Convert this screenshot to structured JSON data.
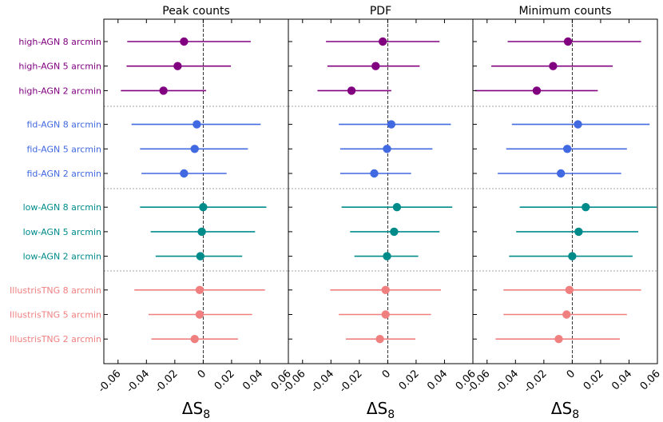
{
  "chart_data": {
    "type": "forest",
    "xlabel_main": "ΔS",
    "xlabel_sub": "8",
    "xlim": [
      -0.07,
      0.06
    ],
    "xticks": [
      -0.06,
      -0.04,
      -0.02,
      0,
      0.02,
      0.04,
      0.06
    ],
    "xtick_labels": [
      "-0.06",
      "-0.04",
      "-0.02",
      "0",
      "0.02",
      "0.04",
      "0.06"
    ],
    "rows": [
      {
        "label": "high-AGN 8 arcmin",
        "color": "#800080",
        "group": 0
      },
      {
        "label": "high-AGN 5 arcmin",
        "color": "#800080",
        "group": 0
      },
      {
        "label": "high-AGN 2 arcmin",
        "color": "#800080",
        "group": 0
      },
      {
        "label": "fid-AGN 8 arcmin",
        "color": "#4169E1",
        "group": 1
      },
      {
        "label": "fid-AGN 5 arcmin",
        "color": "#4169E1",
        "group": 1
      },
      {
        "label": "fid-AGN 2 arcmin",
        "color": "#4169E1",
        "group": 1
      },
      {
        "label": "low-AGN 8 arcmin",
        "color": "#008B8B",
        "group": 2
      },
      {
        "label": "low-AGN 5 arcmin",
        "color": "#008B8B",
        "group": 2
      },
      {
        "label": "low-AGN 2 arcmin",
        "color": "#008B8B",
        "group": 2
      },
      {
        "label": "IllustrisTNG 8 arcmin",
        "color": "#F08080",
        "group": 3
      },
      {
        "label": "IllustrisTNG 5 arcmin",
        "color": "#F08080",
        "group": 3
      },
      {
        "label": "IllustrisTNG 2 arcmin",
        "color": "#F08080",
        "group": 3
      }
    ],
    "panels": [
      {
        "title": "Peak counts",
        "series": [
          {
            "value": -0.0135,
            "low": -0.0535,
            "high": 0.0335
          },
          {
            "value": -0.018,
            "low": -0.054,
            "high": 0.0195
          },
          {
            "value": -0.028,
            "low": -0.058,
            "high": 0.002
          },
          {
            "value": -0.0045,
            "low": -0.0505,
            "high": 0.0405
          },
          {
            "value": -0.006,
            "low": -0.0445,
            "high": 0.0315
          },
          {
            "value": -0.0135,
            "low": -0.0435,
            "high": 0.0165
          },
          {
            "value": 0.0,
            "low": -0.0445,
            "high": 0.0445
          },
          {
            "value": -0.001,
            "low": -0.037,
            "high": 0.0365
          },
          {
            "value": -0.002,
            "low": -0.0335,
            "high": 0.0275
          },
          {
            "value": -0.0025,
            "low": -0.0485,
            "high": 0.0435
          },
          {
            "value": -0.0025,
            "low": -0.0385,
            "high": 0.0345
          },
          {
            "value": -0.006,
            "low": -0.0365,
            "high": 0.0245
          }
        ]
      },
      {
        "title": "PDF",
        "series": [
          {
            "value": -0.0035,
            "low": -0.0435,
            "high": 0.0365
          },
          {
            "value": -0.0085,
            "low": -0.0425,
            "high": 0.0225
          },
          {
            "value": -0.0255,
            "low": -0.0495,
            "high": 0.0025
          },
          {
            "value": 0.0025,
            "low": -0.0345,
            "high": 0.0445
          },
          {
            "value": -0.0005,
            "low": -0.0335,
            "high": 0.0315
          },
          {
            "value": -0.0095,
            "low": -0.0335,
            "high": 0.0165
          },
          {
            "value": 0.0065,
            "low": -0.0325,
            "high": 0.0455
          },
          {
            "value": 0.0045,
            "low": -0.0265,
            "high": 0.0365
          },
          {
            "value": -0.0005,
            "low": -0.0235,
            "high": 0.0215
          },
          {
            "value": -0.0015,
            "low": -0.0405,
            "high": 0.0375
          },
          {
            "value": -0.0015,
            "low": -0.0345,
            "high": 0.0305
          },
          {
            "value": -0.0055,
            "low": -0.0295,
            "high": 0.0195
          }
        ]
      },
      {
        "title": "Minimum counts",
        "series": [
          {
            "value": -0.003,
            "low": -0.0455,
            "high": 0.0485
          },
          {
            "value": -0.0135,
            "low": -0.057,
            "high": 0.0285
          },
          {
            "value": -0.025,
            "low": -0.0685,
            "high": 0.018
          },
          {
            "value": 0.004,
            "low": -0.0425,
            "high": 0.0545
          },
          {
            "value": -0.0035,
            "low": -0.0465,
            "high": 0.0385
          },
          {
            "value": -0.008,
            "low": -0.0525,
            "high": 0.0345
          },
          {
            "value": 0.0095,
            "low": -0.037,
            "high": 0.0595
          },
          {
            "value": 0.0045,
            "low": -0.0395,
            "high": 0.0465
          },
          {
            "value": 0.0,
            "low": -0.0445,
            "high": 0.0425
          },
          {
            "value": -0.002,
            "low": -0.0485,
            "high": 0.0485
          },
          {
            "value": -0.004,
            "low": -0.0485,
            "high": 0.0385
          },
          {
            "value": -0.0095,
            "low": -0.054,
            "high": 0.0335
          }
        ]
      }
    ]
  }
}
